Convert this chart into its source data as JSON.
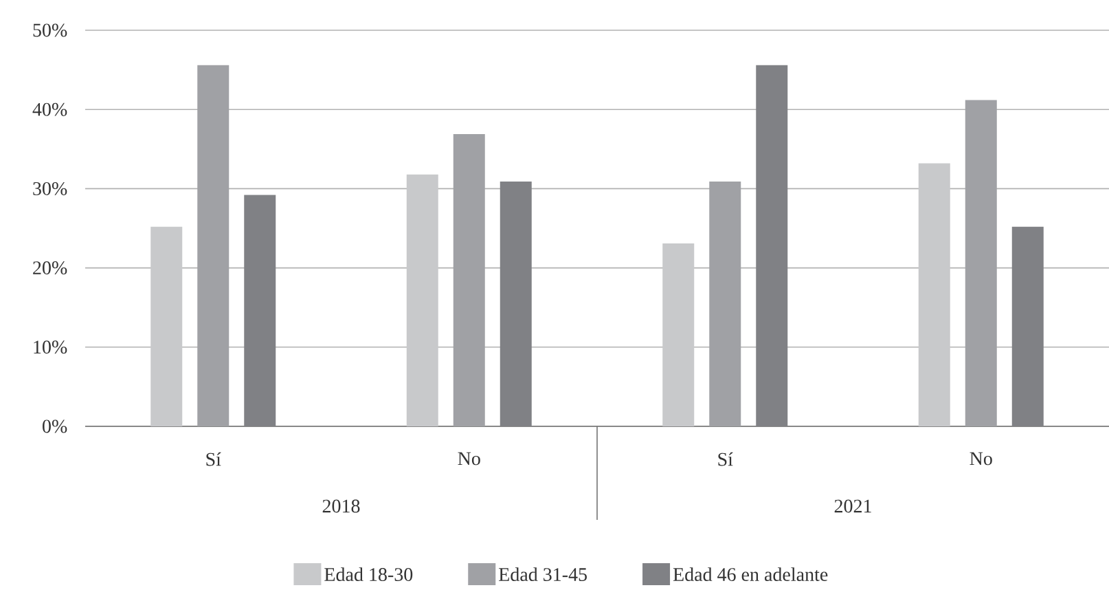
{
  "chart_data": {
    "type": "bar",
    "categories": [
      "Sí",
      "No",
      "Sí",
      "No"
    ],
    "annotations": [
      "2018",
      "2021"
    ],
    "series": [
      {
        "name": "Edad 18-30",
        "color": "#c8c9cb",
        "values": [
          25.2,
          31.8,
          23.1,
          33.2
        ]
      },
      {
        "name": "Edad 31-45",
        "color": "#a0a1a5",
        "values": [
          45.6,
          36.9,
          30.9,
          41.2
        ]
      },
      {
        "name": "Edad 46 en adelante",
        "color": "#808185",
        "values": [
          29.2,
          30.9,
          45.6,
          25.2
        ]
      }
    ],
    "ylim": [
      0,
      50
    ],
    "yticks": [
      {
        "value": 0,
        "label": "0%"
      },
      {
        "value": 10,
        "label": "10%"
      },
      {
        "value": 20,
        "label": "20%"
      },
      {
        "value": 30,
        "label": "30%"
      },
      {
        "value": 40,
        "label": "40%"
      },
      {
        "value": 50,
        "label": "50%"
      }
    ],
    "grid": "y",
    "legend": "bottom"
  }
}
